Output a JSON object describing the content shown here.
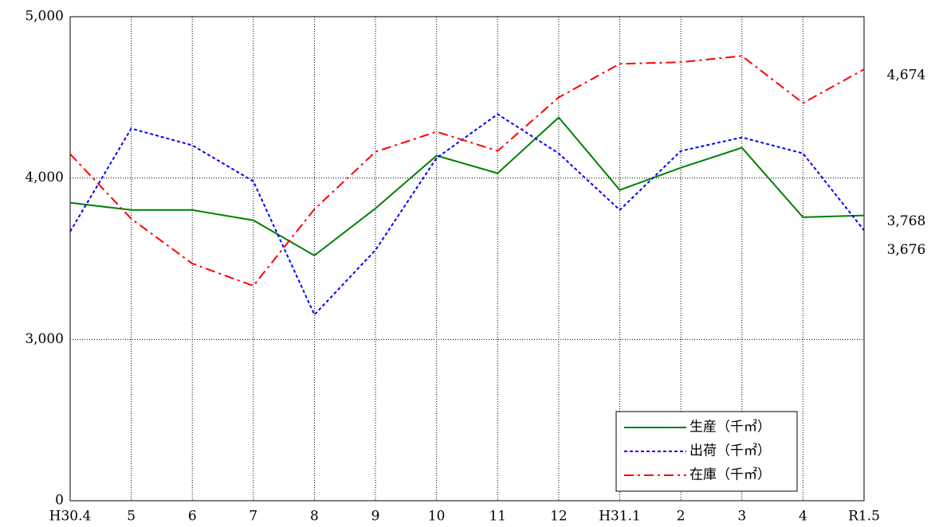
{
  "chart_data": {
    "type": "line",
    "categories": [
      "H30.4",
      "5",
      "6",
      "7",
      "8",
      "9",
      "10",
      "11",
      "12",
      "H31.1",
      "2",
      "3",
      "4",
      "R1.5"
    ],
    "series": [
      {
        "name": "生産（千㎡）",
        "color": "#008000",
        "style": "solid",
        "values": [
          3847,
          3802,
          3802,
          3738,
          3520,
          3812,
          4139,
          4030,
          4376,
          3926,
          4064,
          4188,
          3757,
          3768
        ],
        "value_labels": [
          null,
          null,
          null,
          null,
          null,
          null,
          null,
          null,
          null,
          null,
          null,
          null,
          null,
          "3,768"
        ]
      },
      {
        "name": "出荷（千㎡）",
        "color": "#0000ff",
        "style": "dashed",
        "values": [
          3668,
          4307,
          4203,
          3980,
          3153,
          3554,
          4124,
          4396,
          4153,
          3802,
          4168,
          4252,
          4153,
          3676
        ],
        "value_labels": [
          null,
          null,
          null,
          null,
          null,
          null,
          null,
          null,
          null,
          null,
          null,
          null,
          null,
          "3,676"
        ]
      },
      {
        "name": "在庫（千㎡）",
        "color": "#ff0000",
        "style": "dashdot",
        "values": [
          4149,
          3748,
          3470,
          3332,
          3807,
          4163,
          4287,
          4168,
          4500,
          4708,
          4718,
          4757,
          4465,
          4674
        ],
        "value_labels": [
          null,
          null,
          null,
          null,
          null,
          null,
          null,
          null,
          null,
          null,
          null,
          null,
          null,
          "4,674"
        ]
      }
    ],
    "ylim": [
      0,
      5000
    ],
    "yticks": [
      0,
      {
        "value": 3000,
        "label": "3,000"
      },
      {
        "value": 4000,
        "label": "4,000"
      },
      {
        "value": 5000,
        "label": "5,000"
      }
    ],
    "y_scale": "broken",
    "grid": true,
    "legend": "lower right"
  }
}
